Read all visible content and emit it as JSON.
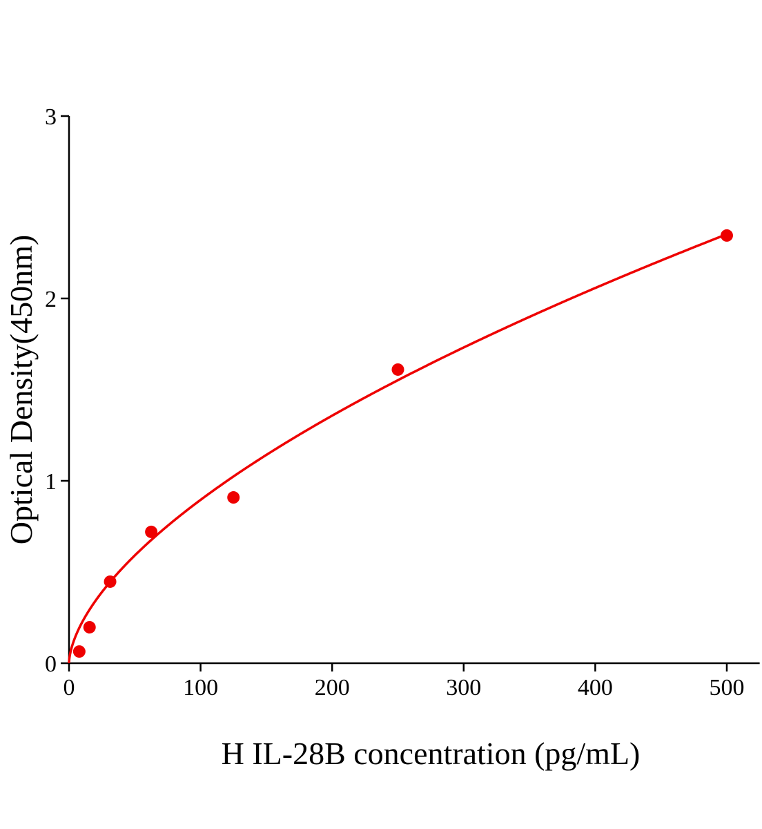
{
  "chart_data": {
    "type": "scatter",
    "title": "",
    "xlabel": "H IL-28B concentration (pg/mL)",
    "ylabel": "Optical Density(450nm)",
    "xlim": [
      0,
      525
    ],
    "ylim": [
      0,
      3
    ],
    "xticks": [
      0,
      100,
      200,
      300,
      400,
      500
    ],
    "yticks": [
      0,
      1,
      2,
      3
    ],
    "grid": false,
    "colors": {
      "points": "#ee0000",
      "curve": "#ee0000",
      "axis": "#000000"
    },
    "series": [
      {
        "x": [
          7.8,
          15.6,
          31.25,
          62.5,
          125,
          250,
          500
        ],
        "y": [
          0.064,
          0.197,
          0.447,
          0.72,
          0.909,
          1.61,
          2.345
        ]
      }
    ],
    "fit": {
      "type": "power",
      "a": 0.0565,
      "b": 0.6,
      "xrange": [
        0,
        500
      ]
    }
  }
}
